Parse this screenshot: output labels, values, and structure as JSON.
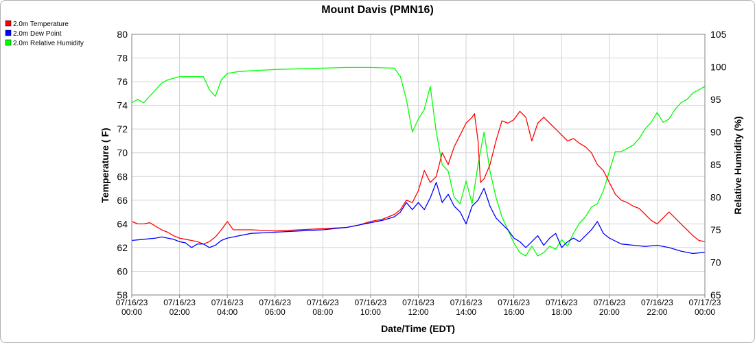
{
  "chart_data": {
    "type": "line",
    "title": "Mount Davis (PMN16)",
    "xlabel": "Date/Time (EDT)",
    "ylabel": "Temperature ( F)",
    "ylabel_right": "Relative Humidity (%)",
    "ylim": [
      58,
      80
    ],
    "ylim_right": [
      65,
      105
    ],
    "yticks": [
      58,
      60,
      62,
      64,
      66,
      68,
      70,
      72,
      74,
      76,
      78,
      80
    ],
    "yticks_right": [
      65,
      70,
      75,
      80,
      85,
      90,
      95,
      100,
      105
    ],
    "xlim_hours": [
      0,
      24
    ],
    "xticks": [
      {
        "hour": 0,
        "date": "07/16/23",
        "time": "00:00"
      },
      {
        "hour": 2,
        "date": "07/16/23",
        "time": "02:00"
      },
      {
        "hour": 4,
        "date": "07/16/23",
        "time": "04:00"
      },
      {
        "hour": 6,
        "date": "07/16/23",
        "time": "06:00"
      },
      {
        "hour": 8,
        "date": "07/16/23",
        "time": "08:00"
      },
      {
        "hour": 10,
        "date": "07/16/23",
        "time": "10:00"
      },
      {
        "hour": 12,
        "date": "07/16/23",
        "time": "12:00"
      },
      {
        "hour": 14,
        "date": "07/16/23",
        "time": "14:00"
      },
      {
        "hour": 16,
        "date": "07/16/23",
        "time": "16:00"
      },
      {
        "hour": 18,
        "date": "07/16/23",
        "time": "18:00"
      },
      {
        "hour": 20,
        "date": "07/16/23",
        "time": "20:00"
      },
      {
        "hour": 22,
        "date": "07/16/23",
        "time": "22:00"
      },
      {
        "hour": 24,
        "date": "07/17/23",
        "time": "00:00"
      }
    ],
    "grid": true,
    "legend_position": "top-left",
    "series": [
      {
        "name": "2.0m Temperature",
        "color": "#ff0000",
        "axis": "left",
        "x": [
          0,
          0.25,
          0.5,
          0.75,
          1.0,
          1.25,
          1.5,
          1.75,
          2.0,
          2.25,
          2.5,
          2.75,
          3.0,
          3.25,
          3.5,
          3.75,
          4.0,
          4.25,
          4.5,
          5.0,
          6.0,
          7.0,
          8.0,
          9.0,
          9.5,
          10.0,
          10.5,
          11.0,
          11.25,
          11.5,
          11.75,
          12.0,
          12.25,
          12.5,
          12.75,
          13.0,
          13.25,
          13.5,
          13.75,
          14.0,
          14.25,
          14.35,
          14.5,
          14.6,
          14.75,
          15.0,
          15.25,
          15.5,
          15.75,
          16.0,
          16.25,
          16.5,
          16.75,
          17.0,
          17.25,
          17.5,
          17.75,
          18.0,
          18.25,
          18.5,
          18.75,
          19.0,
          19.25,
          19.5,
          19.75,
          20.0,
          20.25,
          20.5,
          20.75,
          21.0,
          21.25,
          21.5,
          21.75,
          22.0,
          22.25,
          22.5,
          22.75,
          23.0,
          23.25,
          23.5,
          23.75,
          24.0
        ],
        "y": [
          64.2,
          64.0,
          64.0,
          64.1,
          63.8,
          63.5,
          63.3,
          63.0,
          62.8,
          62.7,
          62.6,
          62.5,
          62.3,
          62.5,
          62.9,
          63.5,
          64.2,
          63.5,
          63.5,
          63.5,
          63.4,
          63.5,
          63.6,
          63.7,
          63.9,
          64.2,
          64.4,
          64.8,
          65.2,
          66.0,
          65.8,
          66.8,
          68.5,
          67.5,
          68.0,
          70.0,
          69.0,
          70.5,
          71.5,
          72.5,
          73.0,
          73.3,
          71.0,
          67.5,
          67.8,
          69.0,
          71.0,
          72.7,
          72.5,
          72.8,
          73.5,
          73.0,
          71.0,
          72.5,
          73.0,
          72.5,
          72.0,
          71.5,
          71.0,
          71.2,
          70.8,
          70.5,
          70.0,
          69.0,
          68.5,
          67.5,
          66.5,
          66.0,
          65.8,
          65.5,
          65.3,
          64.8,
          64.3,
          64.0,
          64.5,
          65.0,
          64.5,
          64.0,
          63.5,
          63.0,
          62.6,
          62.5
        ]
      },
      {
        "name": "2.0m Dew Point",
        "color": "#0000ff",
        "axis": "left",
        "x": [
          0,
          0.5,
          1.0,
          1.25,
          1.5,
          1.75,
          2.0,
          2.25,
          2.5,
          2.75,
          3.0,
          3.25,
          3.5,
          3.75,
          4.0,
          4.5,
          5.0,
          6.0,
          7.0,
          8.0,
          9.0,
          9.5,
          10.0,
          10.5,
          11.0,
          11.25,
          11.5,
          11.75,
          12.0,
          12.25,
          12.5,
          12.75,
          13.0,
          13.25,
          13.5,
          13.75,
          14.0,
          14.25,
          14.5,
          14.75,
          15.0,
          15.25,
          15.5,
          15.75,
          16.0,
          16.25,
          16.5,
          16.75,
          17.0,
          17.25,
          17.5,
          17.75,
          18.0,
          18.25,
          18.5,
          18.75,
          19.0,
          19.25,
          19.5,
          19.75,
          20.0,
          20.5,
          21.0,
          21.5,
          22.0,
          22.5,
          23.0,
          23.5,
          24.0
        ],
        "y": [
          62.6,
          62.7,
          62.8,
          62.9,
          62.8,
          62.7,
          62.5,
          62.4,
          62.0,
          62.3,
          62.3,
          62.0,
          62.2,
          62.6,
          62.8,
          63.0,
          63.2,
          63.3,
          63.4,
          63.5,
          63.7,
          63.9,
          64.1,
          64.3,
          64.6,
          65.0,
          65.8,
          65.2,
          65.8,
          65.2,
          66.2,
          67.5,
          65.8,
          66.5,
          65.5,
          65.0,
          64.0,
          65.5,
          66.0,
          67.0,
          65.5,
          64.5,
          64.0,
          63.5,
          62.8,
          62.5,
          62.0,
          62.5,
          63.0,
          62.2,
          62.8,
          63.2,
          62.0,
          62.5,
          62.8,
          62.5,
          63.0,
          63.5,
          64.2,
          63.2,
          62.8,
          62.3,
          62.2,
          62.1,
          62.2,
          62.0,
          61.7,
          61.5,
          61.6
        ]
      },
      {
        "name": "2.0m Relative Humidity",
        "color": "#00ff00",
        "axis": "right",
        "x": [
          0,
          0.25,
          0.5,
          0.75,
          1.0,
          1.25,
          1.5,
          2.0,
          2.5,
          3.0,
          3.25,
          3.5,
          3.75,
          4.0,
          4.5,
          5.0,
          6.0,
          7.0,
          8.0,
          9.0,
          10.0,
          11.0,
          11.25,
          11.5,
          11.75,
          12.0,
          12.25,
          12.5,
          12.75,
          13.0,
          13.25,
          13.5,
          13.75,
          14.0,
          14.25,
          14.5,
          14.75,
          15.0,
          15.25,
          15.5,
          15.75,
          16.0,
          16.25,
          16.5,
          16.75,
          17.0,
          17.25,
          17.5,
          17.75,
          18.0,
          18.25,
          18.5,
          18.75,
          19.0,
          19.25,
          19.5,
          19.75,
          20.0,
          20.25,
          20.5,
          20.75,
          21.0,
          21.25,
          21.5,
          21.75,
          22.0,
          22.25,
          22.5,
          22.75,
          23.0,
          23.25,
          23.5,
          23.75,
          24.0
        ],
        "y": [
          94.5,
          95.0,
          94.5,
          95.5,
          96.5,
          97.5,
          98.0,
          98.5,
          98.5,
          98.5,
          96.5,
          95.5,
          98.0,
          99.0,
          99.3,
          99.4,
          99.6,
          99.7,
          99.8,
          99.9,
          99.9,
          99.8,
          98.5,
          95.0,
          90.0,
          92.0,
          93.5,
          97.0,
          90.0,
          85.0,
          84.0,
          80.0,
          79.0,
          82.5,
          79.0,
          85.0,
          90.0,
          84.0,
          80.0,
          77.0,
          75.0,
          73.0,
          71.5,
          71.0,
          72.5,
          71.0,
          71.5,
          72.5,
          72.0,
          73.5,
          72.5,
          74.5,
          76.0,
          77.0,
          78.5,
          79.0,
          81.0,
          84.0,
          87.0,
          87.0,
          87.5,
          88.0,
          89.0,
          90.5,
          91.5,
          93.0,
          91.5,
          92.0,
          93.5,
          94.5,
          95.0,
          96.0,
          96.5,
          97.0
        ]
      }
    ]
  }
}
